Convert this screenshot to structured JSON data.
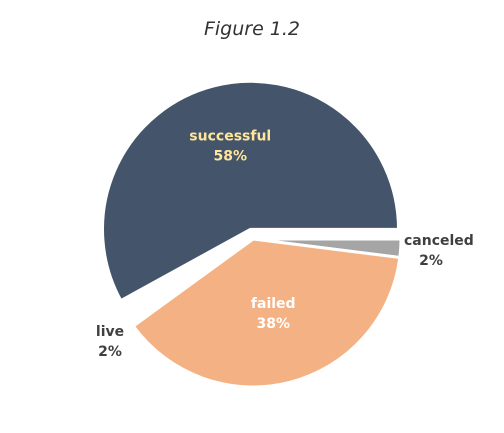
{
  "chart_data": {
    "type": "pie",
    "title": "Figure 1.2",
    "start_angle_deg": 90,
    "direction": "clockwise",
    "slices": [
      {
        "label": "canceled",
        "value": 2,
        "percent_label": "2%",
        "color": "#a5a5a5",
        "label_color": "#404040",
        "label_placement": "outside",
        "explode": 0
      },
      {
        "label": "failed",
        "value": 38,
        "percent_label": "38%",
        "color": "#f4b183",
        "label_color": "#ffffff",
        "label_placement": "inside",
        "explode": 0
      },
      {
        "label": "live",
        "value": 2,
        "percent_label": "2%",
        "color": "#ffffff",
        "label_color": "#404040",
        "label_placement": "outside",
        "explode": 0
      },
      {
        "label": "successful",
        "value": 58,
        "percent_label": "58%",
        "color": "#44546a",
        "label_color": "#ffe699",
        "label_placement": "inside",
        "explode": 1
      }
    ]
  }
}
